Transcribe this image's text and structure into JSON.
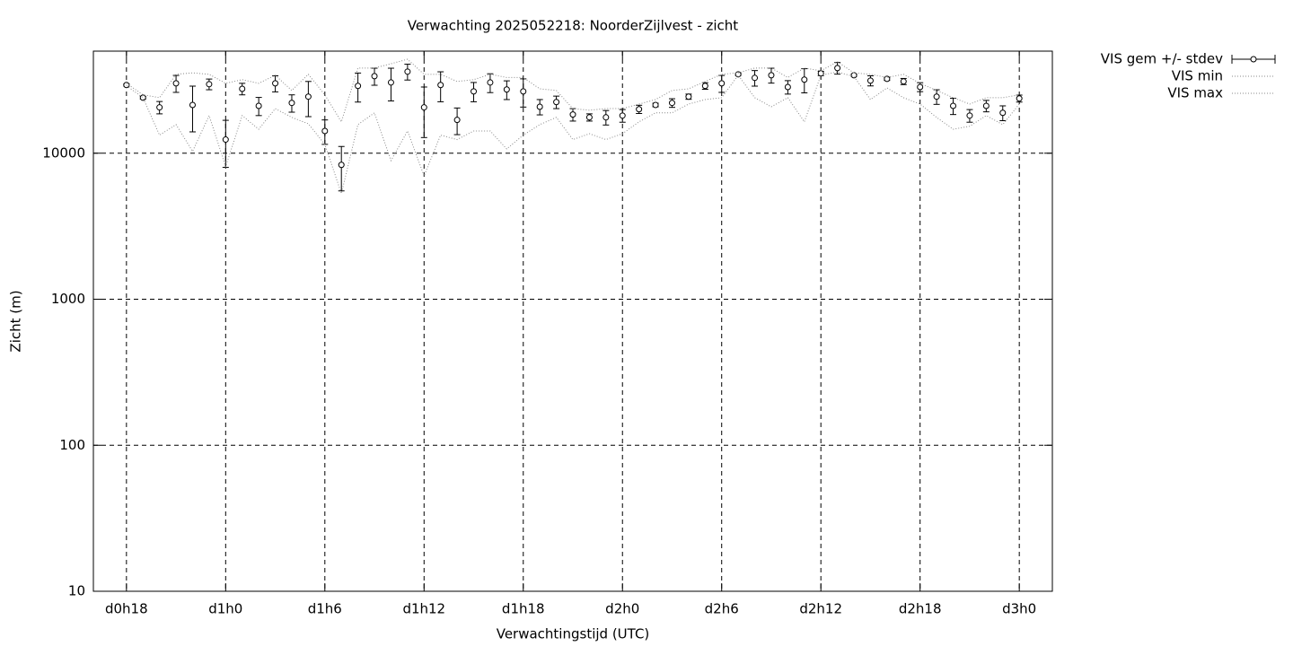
{
  "chart_data": {
    "type": "errorbar",
    "title": "Verwachting 2025052218: NoorderZijlvest - zicht",
    "x_label": "Verwachtingstijd (UTC)",
    "y_label": "Zicht (m)",
    "log_y": true,
    "grid": true,
    "legend": "outside-top-right",
    "x": [
      18,
      19,
      20,
      21,
      22,
      23,
      24,
      25,
      26,
      27,
      28,
      29,
      30,
      31,
      32,
      33,
      34,
      35,
      36,
      37,
      38,
      39,
      40,
      41,
      42,
      43,
      44,
      45,
      46,
      47,
      48,
      49,
      50,
      51,
      52,
      53,
      54,
      55,
      56,
      57,
      58,
      59,
      60,
      61,
      62,
      63,
      64,
      65,
      66,
      67,
      68,
      69,
      70,
      71,
      72
    ],
    "xlim": [
      16,
      74
    ],
    "xticks": [
      {
        "value": 18,
        "label": "d0h18"
      },
      {
        "value": 24,
        "label": "d1h0"
      },
      {
        "value": 30,
        "label": "d1h6"
      },
      {
        "value": 36,
        "label": "d1h12"
      },
      {
        "value": 42,
        "label": "d1h18"
      },
      {
        "value": 48,
        "label": "d2h0"
      },
      {
        "value": 54,
        "label": "d2h6"
      },
      {
        "value": 60,
        "label": "d2h12"
      },
      {
        "value": 66,
        "label": "d2h18"
      },
      {
        "value": 72,
        "label": "d3h0"
      }
    ],
    "ylim": [
      10,
      50000
    ],
    "yticks": [
      10,
      100,
      1000,
      10000
    ],
    "series": [
      {
        "name": "VIS gem +/- stdev",
        "color": "#000000",
        "style": "errorbar",
        "values": [
          29300,
          24000,
          20600,
          30100,
          21400,
          29700,
          12400,
          27600,
          21100,
          30100,
          22100,
          24400,
          14200,
          8320,
          28900,
          33700,
          30500,
          36200,
          20600,
          29300,
          16900,
          26500,
          30500,
          27300,
          26500,
          20800,
          22400,
          18400,
          17600,
          17600,
          18100,
          20000,
          21400,
          22100,
          24400,
          28900,
          30100,
          34700,
          32800,
          34200,
          28400,
          31900,
          35200,
          38300,
          34200,
          31400,
          32300,
          31000,
          28400,
          24400,
          21100,
          18100,
          21100,
          18900,
          23700
        ],
        "errors": [
          500,
          500,
          2000,
          4000,
          7400,
          2500,
          4400,
          2500,
          3000,
          3800,
          3000,
          6600,
          2700,
          2800,
          6500,
          4500,
          7700,
          4500,
          7800,
          6800,
          3500,
          4000,
          4500,
          4000,
          5800,
          2500,
          2200,
          1800,
          1000,
          2000,
          1800,
          1300,
          600,
          1500,
          1000,
          1500,
          4000,
          600,
          4000,
          4000,
          3000,
          6000,
          1200,
          3500,
          600,
          2500,
          800,
          1500,
          2000,
          2800,
          2700,
          1800,
          1900,
          2200,
          1300
        ]
      },
      {
        "name": "VIS min",
        "color": "#888888",
        "style": "dotted",
        "values": [
          29000,
          24000,
          13300,
          15700,
          10300,
          18100,
          8100,
          18100,
          14600,
          20200,
          17600,
          15900,
          11500,
          5300,
          15700,
          18900,
          8900,
          14200,
          7000,
          13300,
          12400,
          14200,
          14200,
          10700,
          13300,
          15700,
          17600,
          12400,
          13600,
          12400,
          13600,
          16400,
          18900,
          18900,
          21700,
          23300,
          24000,
          34200,
          24000,
          20800,
          24000,
          16400,
          34200,
          36000,
          33500,
          23300,
          28000,
          24000,
          21700,
          17600,
          14600,
          15300,
          18100,
          15700,
          21700
        ]
      },
      {
        "name": "VIS max",
        "color": "#888888",
        "style": "dotted",
        "values": [
          30100,
          25100,
          24000,
          34700,
          35500,
          34700,
          30100,
          31900,
          30100,
          34200,
          26900,
          34700,
          25100,
          16400,
          38300,
          38300,
          41000,
          44000,
          34700,
          34700,
          31000,
          31900,
          34700,
          33000,
          33000,
          27600,
          26900,
          20200,
          19700,
          20200,
          20200,
          21700,
          23300,
          26900,
          27600,
          31000,
          34700,
          35500,
          38300,
          38300,
          33000,
          38300,
          36700,
          42300,
          35500,
          34700,
          33000,
          34700,
          30100,
          26900,
          24000,
          21700,
          24000,
          24000,
          25100
        ]
      }
    ]
  }
}
